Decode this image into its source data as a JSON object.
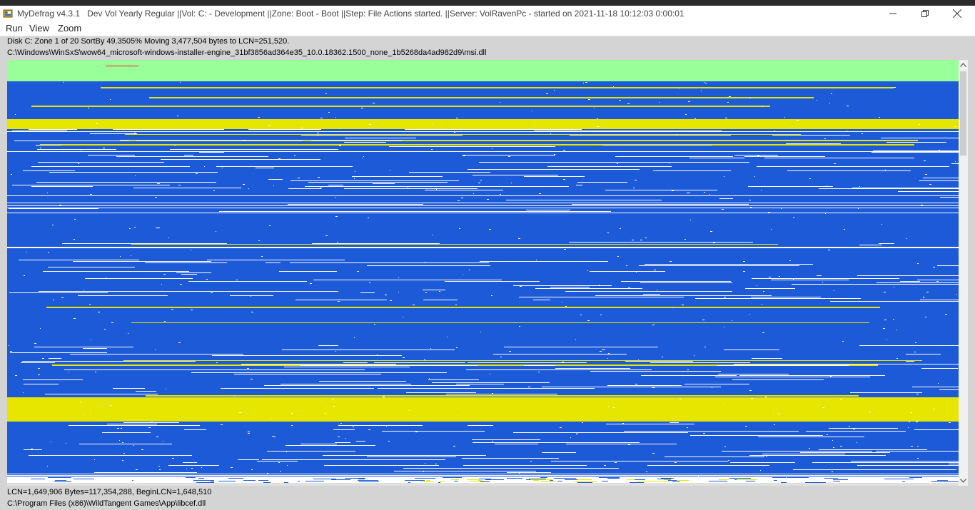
{
  "window": {
    "app_name": "MyDefrag v4.3.1",
    "title_details": "Dev Vol Yearly Regular ||Vol: C: - Development ||Zone: Boot - Boot ||Step: File Actions started. ||Server: VolRavenPc -  started on 2021-11-18 10:12:03 0:00:01"
  },
  "menu": {
    "items": [
      "Run",
      "View",
      "Zoom"
    ]
  },
  "status_top": {
    "line1": "Disk C:    Zone 1 of 20    SortBy    49.3505%    Moving 3,477,504 bytes to LCN=251,520.",
    "line2": "C:\\Windows\\WinSxS\\wow64_microsoft-windows-installer-engine_31bf3856ad364e35_10.0.18362.1500_none_1b5268da4ad982d9\\msi.dll"
  },
  "status_bottom": {
    "line1": "LCN=1,649,906      Bytes=117,354,288, BeginLCN=1,648,510",
    "line2": "C:\\Program Files (x86)\\WildTangent Games\\App\\libcef.dll"
  },
  "diskmap_colors": {
    "free": "#ffffff",
    "file": "#1d5ad8",
    "unmovable": "#e6e600",
    "mft_zone": "#99ff99",
    "busy": "#ff2020"
  },
  "icons": {
    "app": "mydefrag-app-icon",
    "minimize": "minimize-icon",
    "restore": "restore-icon",
    "close": "close-icon"
  }
}
